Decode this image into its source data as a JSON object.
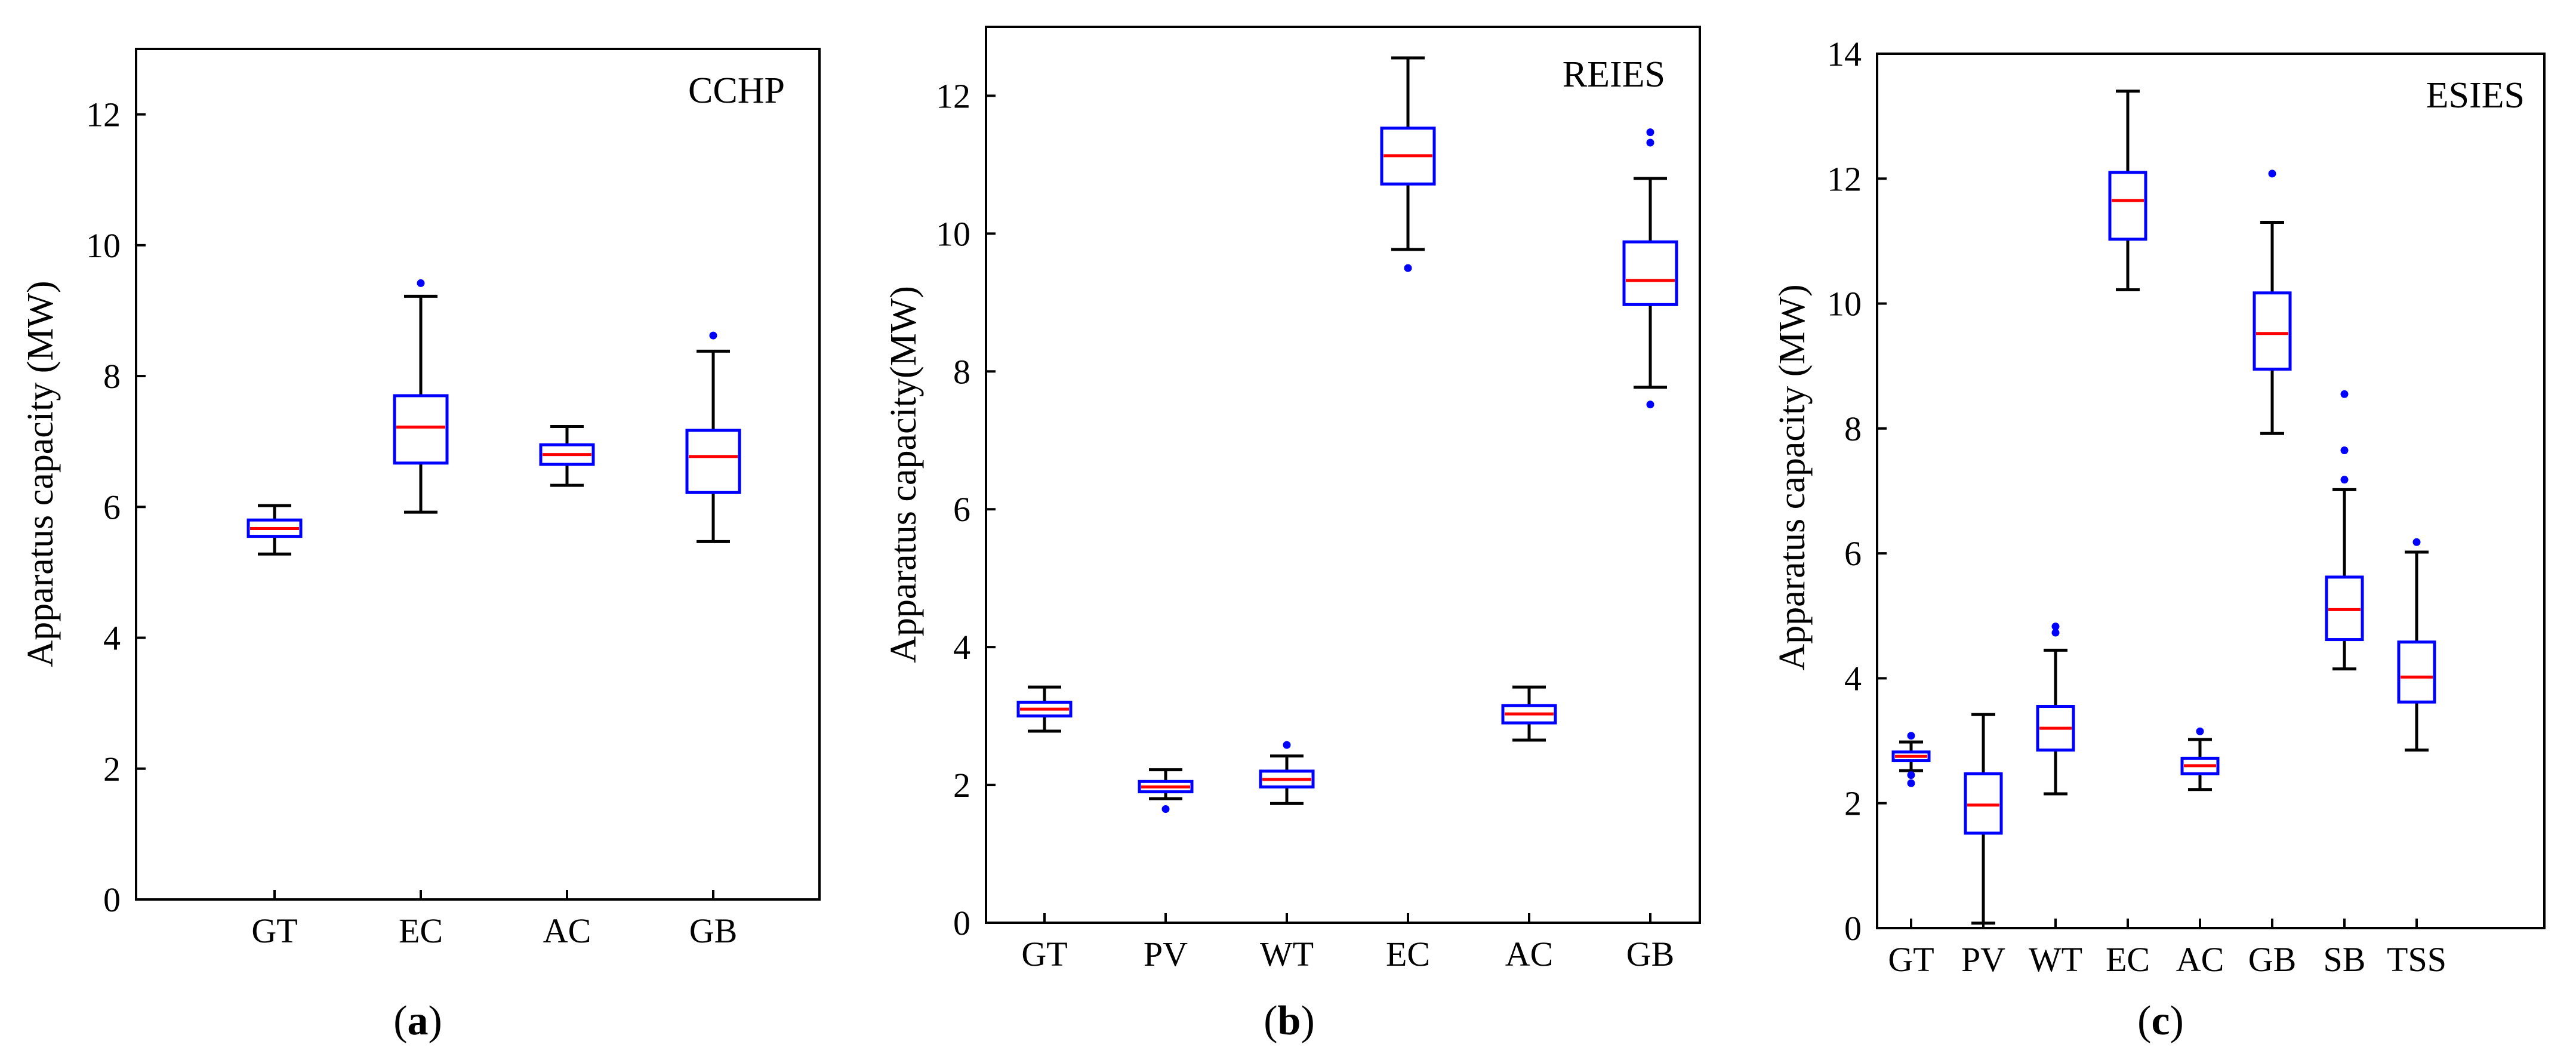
{
  "figure": {
    "captions": [
      {
        "open": "(",
        "letter": "a",
        "close": ")"
      },
      {
        "open": "(",
        "letter": "b",
        "close": ")"
      },
      {
        "open": "(",
        "letter": "c",
        "close": ")"
      }
    ]
  },
  "colors": {
    "box": "#0000ff",
    "median": "#ff0000",
    "whisker": "#000000",
    "outlier": "#0000ff",
    "axis": "#000000"
  },
  "chart_data": [
    {
      "type": "box",
      "title": "CCHP",
      "xlabel": "",
      "ylabel": "Apparatus capacity (MW)",
      "ylim": [
        0,
        13
      ],
      "yticks": [
        0,
        2,
        4,
        6,
        8,
        10,
        12
      ],
      "y_tick_labels": [
        "0",
        "2",
        "4",
        "6",
        "8",
        "10",
        "12"
      ],
      "categories": [
        "GT",
        "EC",
        "AC",
        "GB"
      ],
      "boxes": [
        {
          "category": "GT",
          "min": 5.28,
          "q1": 5.55,
          "median": 5.67,
          "q3": 5.8,
          "max": 6.02,
          "outliers": []
        },
        {
          "category": "EC",
          "min": 5.92,
          "q1": 6.67,
          "median": 7.22,
          "q3": 7.7,
          "max": 9.22,
          "outliers": [
            9.42
          ]
        },
        {
          "category": "AC",
          "min": 6.33,
          "q1": 6.65,
          "median": 6.8,
          "q3": 6.95,
          "max": 7.23,
          "outliers": []
        },
        {
          "category": "GB",
          "min": 5.47,
          "q1": 6.22,
          "median": 6.77,
          "q3": 7.17,
          "max": 8.38,
          "outliers": [
            8.62
          ]
        }
      ]
    },
    {
      "type": "box",
      "title": "REIES",
      "xlabel": "",
      "ylabel": "Apparatus capacity(MW)",
      "ylim": [
        0,
        13
      ],
      "yticks": [
        0,
        2,
        4,
        6,
        8,
        10,
        12
      ],
      "y_tick_labels": [
        "0",
        "2",
        "4",
        "6",
        "8",
        "10",
        "12"
      ],
      "categories": [
        "GT",
        "PV",
        "WT",
        "EC",
        "AC",
        "GB"
      ],
      "boxes": [
        {
          "category": "GT",
          "min": 2.78,
          "q1": 3.0,
          "median": 3.1,
          "q3": 3.2,
          "max": 3.42,
          "outliers": []
        },
        {
          "category": "PV",
          "min": 1.8,
          "q1": 1.9,
          "median": 1.97,
          "q3": 2.05,
          "max": 2.22,
          "outliers": [
            1.65
          ]
        },
        {
          "category": "WT",
          "min": 1.73,
          "q1": 1.97,
          "median": 2.08,
          "q3": 2.2,
          "max": 2.42,
          "outliers": [
            2.58
          ]
        },
        {
          "category": "EC",
          "min": 9.77,
          "q1": 10.72,
          "median": 11.13,
          "q3": 11.53,
          "max": 12.55,
          "outliers": [
            9.5
          ]
        },
        {
          "category": "AC",
          "min": 2.65,
          "q1": 2.9,
          "median": 3.03,
          "q3": 3.15,
          "max": 3.42,
          "outliers": []
        },
        {
          "category": "GB",
          "min": 7.77,
          "q1": 8.97,
          "median": 9.32,
          "q3": 9.88,
          "max": 10.8,
          "outliers": [
            7.52,
            11.32,
            11.47
          ]
        }
      ]
    },
    {
      "type": "box",
      "title": "ESIES",
      "xlabel": "",
      "ylabel": "Apparatus capacity (MW)",
      "ylim": [
        0,
        14
      ],
      "yticks": [
        0,
        2,
        4,
        6,
        8,
        10,
        12,
        14
      ],
      "y_tick_labels": [
        "0",
        "2",
        "4",
        "6",
        "8",
        "10",
        "12",
        "14"
      ],
      "categories": [
        "GT",
        "PV",
        "WT",
        "EC",
        "AC",
        "GB",
        "SB",
        "TSS"
      ],
      "boxes": [
        {
          "category": "GT",
          "min": 2.52,
          "q1": 2.68,
          "median": 2.75,
          "q3": 2.82,
          "max": 2.98,
          "outliers": [
            2.32,
            2.45,
            3.08
          ]
        },
        {
          "category": "PV",
          "min": 0.08,
          "q1": 1.52,
          "median": 1.97,
          "q3": 2.47,
          "max": 3.42,
          "outliers": []
        },
        {
          "category": "WT",
          "min": 2.15,
          "q1": 2.85,
          "median": 3.2,
          "q3": 3.55,
          "max": 4.45,
          "outliers": [
            4.73,
            4.83
          ]
        },
        {
          "category": "EC",
          "min": 10.22,
          "q1": 11.03,
          "median": 11.65,
          "q3": 12.1,
          "max": 13.4,
          "outliers": []
        },
        {
          "category": "AC",
          "min": 2.22,
          "q1": 2.47,
          "median": 2.6,
          "q3": 2.72,
          "max": 3.02,
          "outliers": [
            3.15
          ]
        },
        {
          "category": "GB",
          "min": 7.92,
          "q1": 8.95,
          "median": 9.52,
          "q3": 10.17,
          "max": 11.3,
          "outliers": [
            12.08
          ]
        },
        {
          "category": "SB",
          "min": 4.15,
          "q1": 4.62,
          "median": 5.1,
          "q3": 5.62,
          "max": 7.02,
          "outliers": [
            7.18,
            7.65,
            8.55
          ]
        },
        {
          "category": "TSS",
          "min": 2.85,
          "q1": 3.62,
          "median": 4.02,
          "q3": 4.58,
          "max": 6.02,
          "outliers": [
            6.18
          ]
        }
      ]
    }
  ]
}
